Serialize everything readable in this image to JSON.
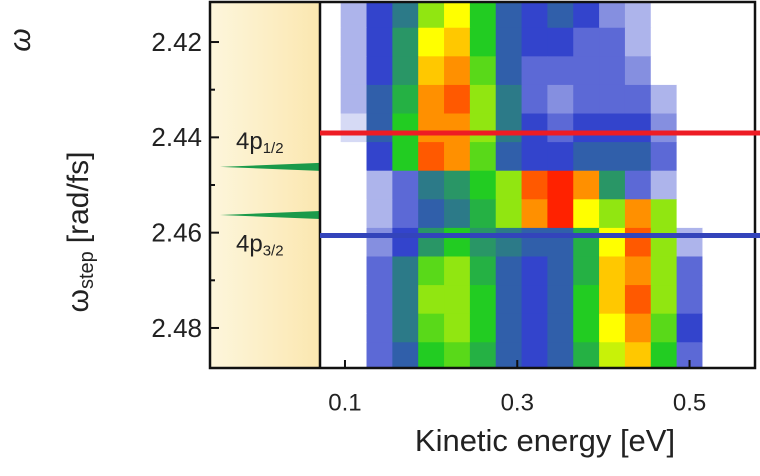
{
  "chart_data": {
    "type": "heatmap",
    "xlabel": "Kinetic energy [eV]",
    "ylabel": {
      "symbol": "ω",
      "sub": "step",
      "unit": "[rad/fs]"
    },
    "ylabel_top": "ω",
    "xlim": [
      0.071,
      0.576
    ],
    "ylim": [
      2.4116,
      2.4884
    ],
    "xticks": [
      0.1,
      0.3,
      0.5
    ],
    "yticks": [
      2.42,
      2.44,
      2.46,
      2.48
    ],
    "yminor": [
      2.43,
      2.45,
      2.47
    ],
    "x": [
      0.08,
      0.11,
      0.14,
      0.17,
      0.2,
      0.23,
      0.26,
      0.29,
      0.32,
      0.35,
      0.38,
      0.41,
      0.44,
      0.47,
      0.5,
      0.53,
      0.56
    ],
    "y": [
      2.414,
      2.42,
      2.426,
      2.432,
      2.438,
      2.444,
      2.45,
      2.456,
      2.462,
      2.468,
      2.474,
      2.48,
      2.486
    ],
    "z": [
      [
        0,
        0.1,
        0.25,
        0.35,
        0.6,
        0.7,
        0.5,
        0.3,
        0.25,
        0.3,
        0.25,
        0.15,
        0.1,
        0,
        0,
        0,
        0
      ],
      [
        0,
        0.1,
        0.25,
        0.4,
        0.7,
        0.75,
        0.5,
        0.3,
        0.25,
        0.25,
        0.2,
        0.2,
        0.1,
        0,
        0,
        0,
        0
      ],
      [
        0,
        0.1,
        0.25,
        0.4,
        0.75,
        0.8,
        0.55,
        0.3,
        0.2,
        0.2,
        0.2,
        0.2,
        0.15,
        0,
        0,
        0,
        0
      ],
      [
        0,
        0.1,
        0.3,
        0.45,
        0.8,
        0.85,
        0.6,
        0.35,
        0.2,
        0.15,
        0.2,
        0.2,
        0.2,
        0.1,
        0,
        0,
        0
      ],
      [
        0,
        0.05,
        0.3,
        0.5,
        0.8,
        0.8,
        0.6,
        0.35,
        0.25,
        0.2,
        0.25,
        0.25,
        0.25,
        0.15,
        0,
        0,
        0
      ],
      [
        0,
        0,
        0.25,
        0.5,
        0.85,
        0.8,
        0.55,
        0.3,
        0.25,
        0.25,
        0.3,
        0.3,
        0.3,
        0.2,
        0,
        0,
        0
      ],
      [
        0,
        0,
        0.1,
        0.2,
        0.35,
        0.4,
        0.5,
        0.6,
        0.85,
        0.95,
        0.8,
        0.4,
        0.2,
        0.1,
        0,
        0,
        0
      ],
      [
        0,
        0,
        0.1,
        0.2,
        0.3,
        0.35,
        0.45,
        0.6,
        0.8,
        0.9,
        0.7,
        0.6,
        0.8,
        0.6,
        0,
        0,
        0
      ],
      [
        0,
        0,
        0.15,
        0.25,
        0.4,
        0.5,
        0.4,
        0.35,
        0.3,
        0.3,
        0.45,
        0.7,
        0.85,
        0.6,
        0.1,
        0,
        0
      ],
      [
        0,
        0,
        0.2,
        0.35,
        0.55,
        0.6,
        0.45,
        0.3,
        0.25,
        0.3,
        0.45,
        0.75,
        0.8,
        0.6,
        0.2,
        0,
        0
      ],
      [
        0,
        0,
        0.2,
        0.35,
        0.6,
        0.6,
        0.5,
        0.3,
        0.25,
        0.3,
        0.5,
        0.75,
        0.85,
        0.6,
        0.2,
        0,
        0
      ],
      [
        0,
        0,
        0.2,
        0.35,
        0.55,
        0.6,
        0.5,
        0.3,
        0.25,
        0.3,
        0.5,
        0.7,
        0.8,
        0.55,
        0.25,
        0,
        0
      ],
      [
        0,
        0,
        0.2,
        0.3,
        0.5,
        0.55,
        0.45,
        0.3,
        0.25,
        0.3,
        0.45,
        0.65,
        0.75,
        0.5,
        0.2,
        0,
        0
      ]
    ],
    "colorscale": [
      [
        0,
        "#ffffff"
      ],
      [
        0.25,
        "#3344cc"
      ],
      [
        0.5,
        "#22cc22"
      ],
      [
        0.7,
        "#ffff00"
      ],
      [
        0.9,
        "#ff2200"
      ]
    ],
    "lines": [
      {
        "label": "4p",
        "sub": "1/2",
        "value": 2.4391,
        "color": "#ee1c24"
      },
      {
        "label": "4p",
        "sub": "3/2",
        "value": 2.4606,
        "color": "#3344bb"
      }
    ],
    "peaks": [
      2.4462,
      2.4563
    ],
    "peak_color": "#1a9a4a",
    "label_color": "#22aa44"
  }
}
